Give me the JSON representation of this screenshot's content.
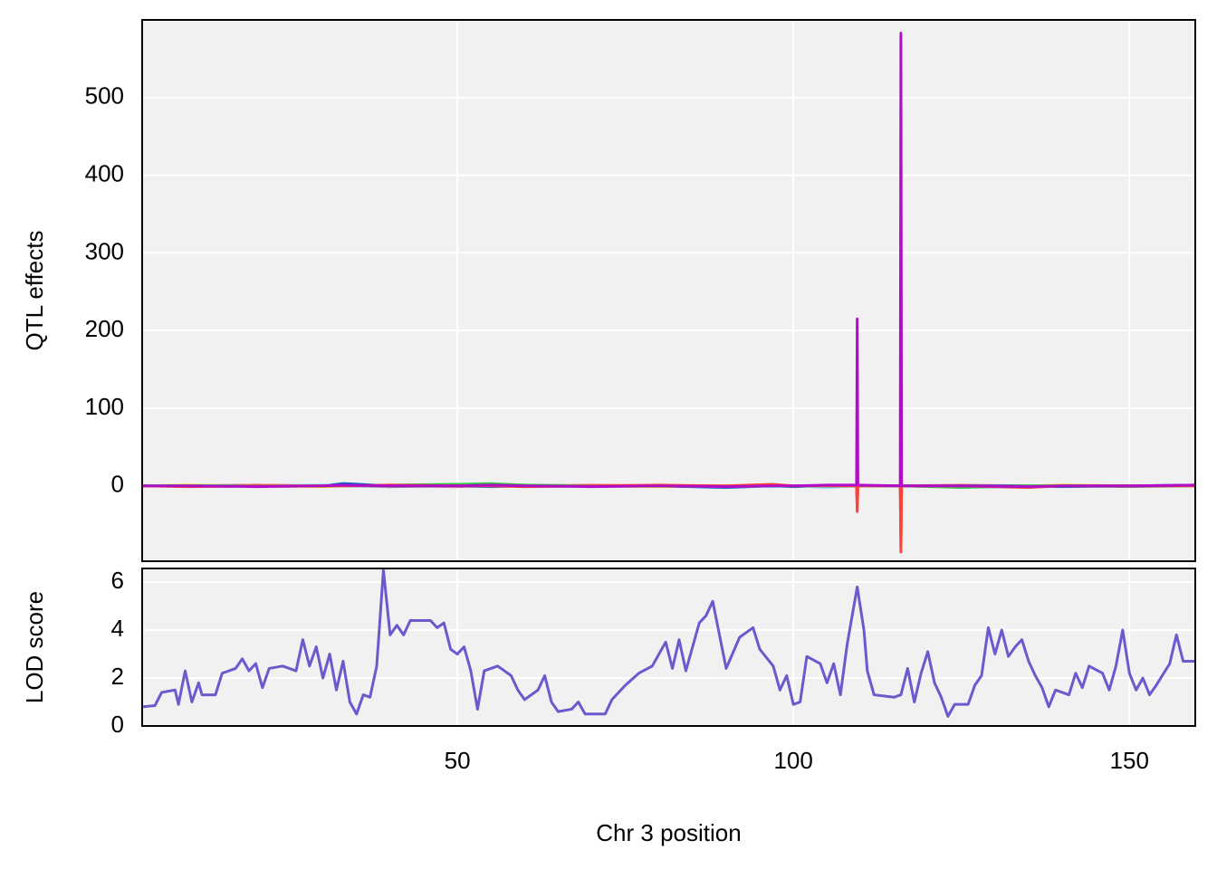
{
  "chart_data": [
    {
      "type": "line",
      "ylabel": "QTL effects",
      "x": [
        3.1,
        10,
        20,
        30,
        33,
        40,
        50,
        55,
        60,
        70,
        80,
        90,
        97,
        100,
        105,
        109.4,
        109.5,
        109.6,
        115.9,
        116,
        116.1,
        125,
        135,
        140,
        150,
        159.8
      ],
      "series": [
        {
          "color": "#FFDC00",
          "values": [
            0,
            1,
            0,
            -1,
            0,
            0,
            1,
            0,
            0,
            0,
            -1,
            0,
            1,
            0,
            0,
            0,
            -2,
            0,
            0,
            -4,
            0,
            0,
            0,
            1,
            0,
            0
          ]
        },
        {
          "color": "#888888",
          "values": [
            0,
            0,
            1,
            0,
            0,
            -1,
            0,
            0,
            1,
            0,
            0,
            -1,
            0,
            0,
            -1,
            0,
            -30,
            0,
            0,
            -80,
            0,
            0,
            0,
            0,
            -1,
            0
          ]
        },
        {
          "color": "#F08080",
          "values": [
            0,
            0,
            1,
            0,
            0,
            0,
            -1,
            0,
            0,
            1,
            0,
            0,
            0,
            -1,
            0,
            0,
            3,
            0,
            0,
            6,
            0,
            1,
            0,
            0,
            0,
            0
          ]
        },
        {
          "color": "#0064C9",
          "values": [
            0,
            0,
            0,
            0,
            3,
            0,
            0,
            -1,
            0,
            0,
            0,
            -2,
            0,
            -1,
            0,
            0,
            2,
            0,
            0,
            4,
            0,
            0,
            0,
            -1,
            0,
            1
          ]
        },
        {
          "color": "#7FDBFF",
          "values": [
            0,
            0,
            0,
            1,
            0,
            0,
            0,
            0,
            -1,
            0,
            0,
            0,
            -1,
            0,
            -2,
            0,
            1,
            0,
            0,
            2,
            0,
            -1,
            -2,
            0,
            0,
            0
          ]
        },
        {
          "color": "#2ECC40",
          "values": [
            0,
            0,
            0,
            0,
            0,
            1,
            2,
            3,
            1,
            0,
            0,
            -1,
            0,
            0,
            0,
            0,
            1,
            0,
            0,
            2,
            0,
            -2,
            0,
            0,
            0,
            0
          ]
        },
        {
          "color": "#FF4136",
          "values": [
            0,
            -1,
            0,
            0,
            0,
            1,
            0,
            0,
            -1,
            0,
            1,
            0,
            2,
            0,
            0,
            0,
            -33,
            0,
            0,
            -85,
            0,
            0,
            -2,
            0,
            0,
            0
          ]
        },
        {
          "color": "#B10DC9",
          "values": [
            0,
            0,
            -1,
            0,
            1,
            0,
            0,
            1,
            0,
            -1,
            0,
            -1,
            0,
            0,
            1,
            1,
            215,
            1,
            0,
            583,
            0,
            0,
            -1,
            0,
            0,
            1
          ]
        }
      ],
      "xlim": [
        3.1,
        159.8
      ],
      "xticks": [
        50,
        100,
        150
      ],
      "ylim": [
        -97,
        600
      ],
      "yticks": [
        0,
        100,
        200,
        300,
        400,
        500
      ],
      "grid": true
    },
    {
      "type": "line",
      "ylabel": "LOD score",
      "xlabel": "Chr 3 position",
      "x": [
        3.1,
        5,
        6,
        8,
        8.5,
        9.5,
        10.5,
        11.5,
        12,
        14,
        15,
        17,
        18,
        19,
        20,
        21,
        22,
        24,
        26,
        27,
        28,
        29,
        30,
        31,
        32,
        33,
        34,
        35,
        36,
        37,
        38,
        39,
        40,
        41,
        42,
        43,
        46,
        47,
        48,
        49,
        50,
        51,
        52,
        53,
        54,
        56,
        57,
        58,
        59,
        60,
        62,
        63,
        64,
        65,
        67,
        68,
        69,
        72,
        73,
        75,
        77,
        79,
        81,
        82,
        83,
        84,
        86,
        87,
        88,
        89,
        90,
        92,
        94,
        95,
        97,
        98,
        99,
        100,
        101,
        102,
        104,
        105,
        106,
        107,
        108,
        109.5,
        110.5,
        111,
        112,
        115,
        116,
        117,
        118,
        119,
        120,
        121,
        122,
        123,
        124,
        126,
        127,
        128,
        129,
        130,
        131,
        132,
        133,
        134,
        135,
        136,
        137,
        138,
        139,
        141,
        142,
        143,
        144,
        146,
        147,
        148,
        149,
        150,
        151,
        152,
        153,
        154,
        156,
        157,
        158,
        159.8
      ],
      "series": [
        {
          "color": "#6A5ACD",
          "values": [
            0.8,
            0.85,
            1.4,
            1.5,
            0.9,
            2.3,
            1.0,
            1.8,
            1.3,
            1.3,
            2.2,
            2.4,
            2.8,
            2.3,
            2.6,
            1.6,
            2.4,
            2.5,
            2.3,
            3.6,
            2.5,
            3.3,
            2.0,
            3.0,
            1.5,
            2.7,
            1.0,
            0.5,
            1.3,
            1.2,
            2.5,
            6.5,
            3.8,
            4.2,
            3.8,
            4.4,
            4.4,
            4.1,
            4.3,
            3.2,
            3.0,
            3.3,
            2.3,
            0.7,
            2.3,
            2.5,
            2.3,
            2.1,
            1.5,
            1.1,
            1.5,
            2.1,
            1.0,
            0.6,
            0.7,
            1.0,
            0.5,
            0.5,
            1.1,
            1.7,
            2.2,
            2.5,
            3.5,
            2.4,
            3.6,
            2.3,
            4.3,
            4.6,
            5.2,
            3.8,
            2.4,
            3.7,
            4.1,
            3.2,
            2.5,
            1.5,
            2.1,
            0.9,
            1.0,
            2.9,
            2.6,
            1.8,
            2.6,
            1.3,
            3.4,
            5.8,
            4.0,
            2.3,
            1.3,
            1.2,
            1.3,
            2.4,
            1.0,
            2.2,
            3.1,
            1.8,
            1.2,
            0.4,
            0.9,
            0.9,
            1.7,
            2.1,
            4.1,
            3.0,
            4.0,
            2.9,
            3.3,
            3.6,
            2.7,
            2.1,
            1.6,
            0.8,
            1.5,
            1.3,
            2.2,
            1.6,
            2.5,
            2.2,
            1.5,
            2.5,
            4.0,
            2.2,
            1.5,
            2.0,
            1.3,
            1.7,
            2.6,
            3.8,
            2.7,
            2.7
          ]
        }
      ],
      "xlim": [
        3.1,
        159.8
      ],
      "xticks": [
        50,
        100,
        150
      ],
      "ylim": [
        0,
        6.57
      ],
      "yticks": [
        0,
        2,
        4,
        6
      ],
      "grid": true
    }
  ]
}
